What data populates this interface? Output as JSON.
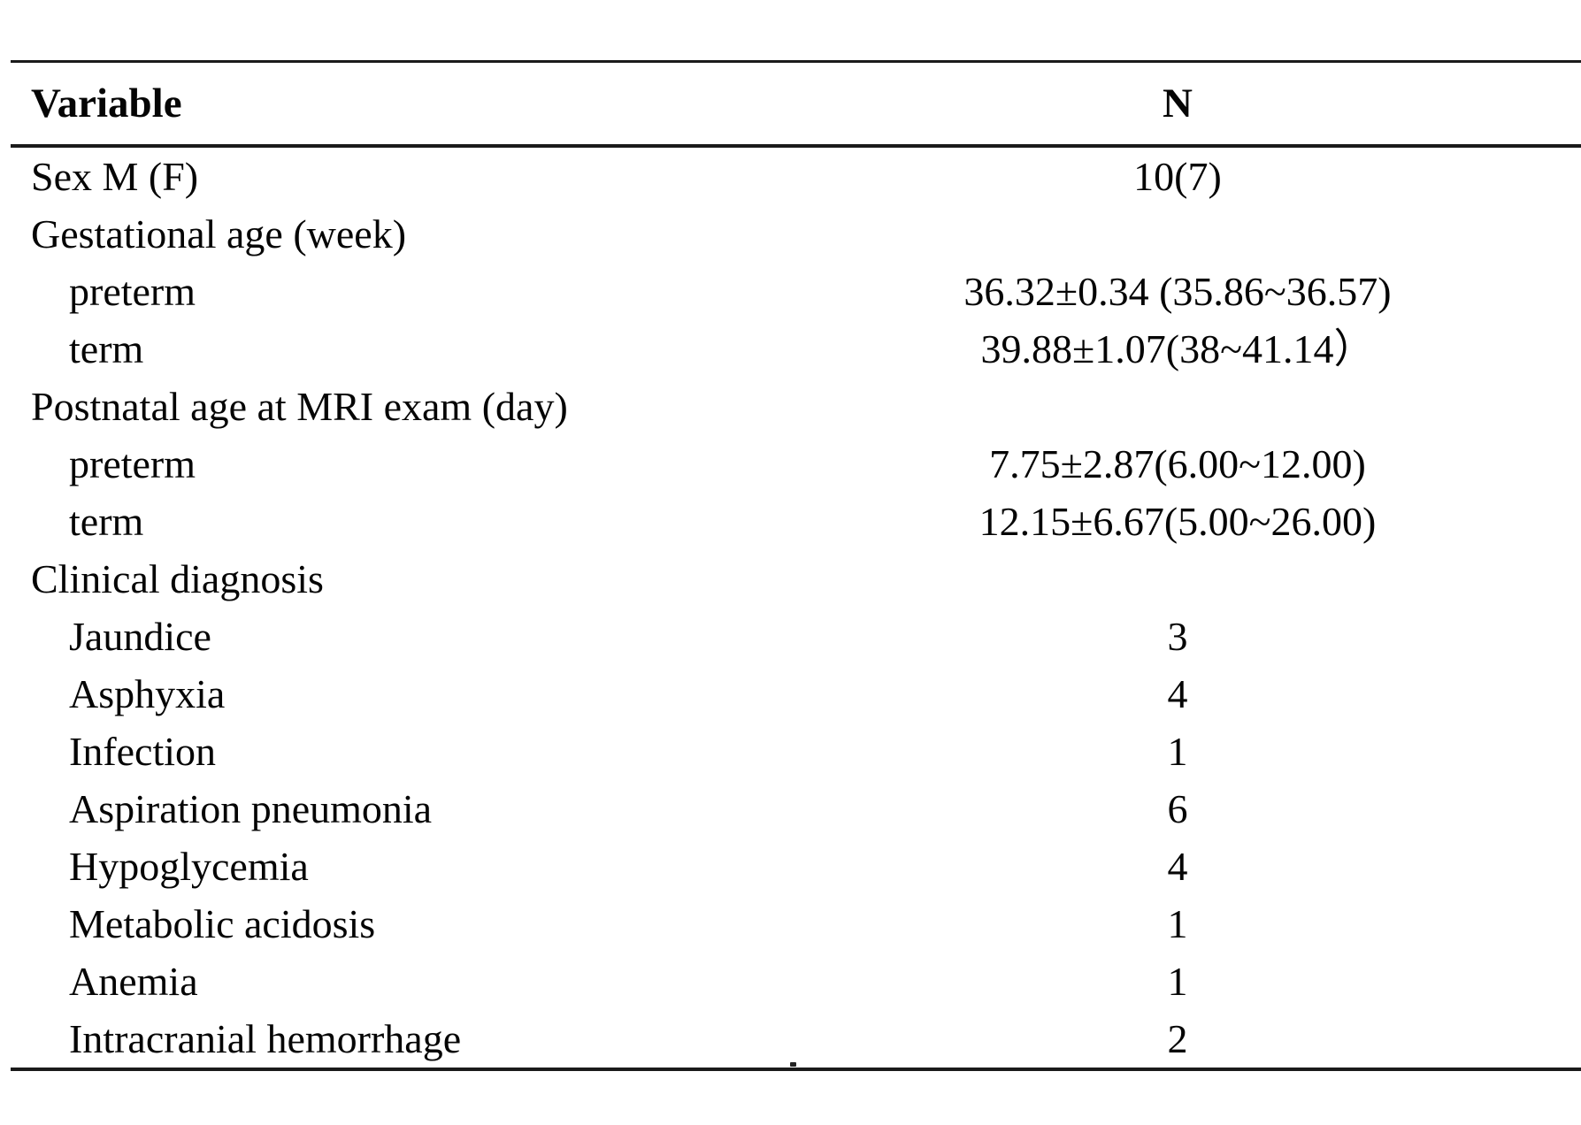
{
  "table": {
    "columns": [
      {
        "label": "Variable"
      },
      {
        "label": "N"
      }
    ],
    "rows": [
      {
        "label": "Sex M (F)",
        "indent": 0,
        "value": "10(7)"
      },
      {
        "label": "Gestational age (week)",
        "indent": 0,
        "value": ""
      },
      {
        "label": "preterm",
        "indent": 1,
        "value": "36.32±0.34 (35.86~36.57)"
      },
      {
        "label": "term",
        "indent": 1,
        "value": "39.88±1.07(38~41.14）"
      },
      {
        "label": "Postnatal age at MRI exam (day)",
        "indent": 0,
        "value": ""
      },
      {
        "label": "preterm",
        "indent": 1,
        "value": "7.75±2.87(6.00~12.00)"
      },
      {
        "label": "term",
        "indent": 1,
        "value": "12.15±6.67(5.00~26.00)"
      },
      {
        "label": "Clinical diagnosis",
        "indent": 0,
        "value": ""
      },
      {
        "label": "Jaundice",
        "indent": 1,
        "value": "3"
      },
      {
        "label": "Asphyxia",
        "indent": 1,
        "value": "4"
      },
      {
        "label": "Infection",
        "indent": 1,
        "value": "1"
      },
      {
        "label": "Aspiration pneumonia",
        "indent": 1,
        "value": "6"
      },
      {
        "label": "Hypoglycemia",
        "indent": 1,
        "value": "4"
      },
      {
        "label": "Metabolic acidosis",
        "indent": 1,
        "value": "1"
      },
      {
        "label": "Anemia",
        "indent": 1,
        "value": "1"
      },
      {
        "label": "Intracranial hemorrhage",
        "indent": 1,
        "value": "2"
      }
    ],
    "rule_color": "#1a1a1a",
    "text_color": "#050505"
  }
}
